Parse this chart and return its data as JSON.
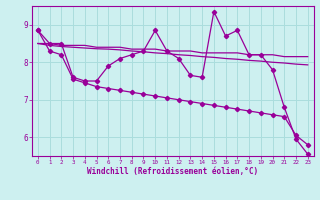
{
  "xlabel": "Windchill (Refroidissement éolien,°C)",
  "background_color": "#cdf0f0",
  "grid_color": "#aadddd",
  "line_color": "#990099",
  "xlim": [
    -0.5,
    23.5
  ],
  "ylim": [
    5.5,
    9.5
  ],
  "yticks": [
    6,
    7,
    8,
    9
  ],
  "xticks": [
    0,
    1,
    2,
    3,
    4,
    5,
    6,
    7,
    8,
    9,
    10,
    11,
    12,
    13,
    14,
    15,
    16,
    17,
    18,
    19,
    20,
    21,
    22,
    23
  ],
  "series1": [
    8.85,
    8.5,
    8.5,
    7.6,
    7.5,
    7.5,
    7.9,
    8.1,
    8.2,
    8.3,
    8.85,
    8.3,
    8.1,
    7.65,
    7.6,
    9.35,
    8.7,
    8.85,
    8.2,
    8.2,
    7.8,
    6.8,
    5.95,
    5.55
  ],
  "series2": [
    8.5,
    8.5,
    8.45,
    8.45,
    8.45,
    8.4,
    8.4,
    8.4,
    8.35,
    8.35,
    8.35,
    8.3,
    8.3,
    8.3,
    8.25,
    8.25,
    8.25,
    8.25,
    8.2,
    8.2,
    8.2,
    8.15,
    8.15,
    8.15
  ],
  "series3": [
    8.5,
    8.45,
    8.42,
    8.4,
    8.38,
    8.36,
    8.35,
    8.33,
    8.3,
    8.28,
    8.25,
    8.23,
    8.2,
    8.18,
    8.15,
    8.13,
    8.1,
    8.08,
    8.05,
    8.03,
    8.0,
    7.98,
    7.95,
    7.93
  ],
  "series4": [
    8.85,
    8.3,
    8.2,
    7.55,
    7.45,
    7.35,
    7.3,
    7.25,
    7.2,
    7.15,
    7.1,
    7.05,
    7.0,
    6.95,
    6.9,
    6.85,
    6.8,
    6.75,
    6.7,
    6.65,
    6.6,
    6.55,
    6.05,
    5.8
  ]
}
